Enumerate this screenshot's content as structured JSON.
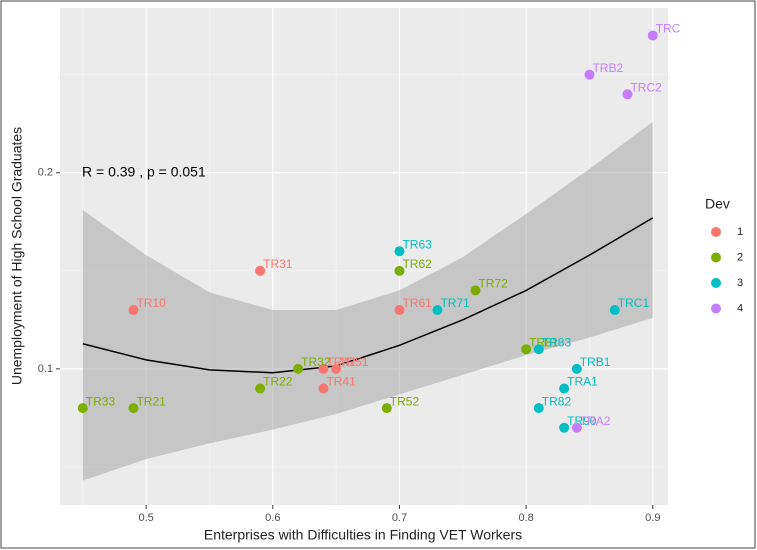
{
  "chart_data": {
    "type": "scatter",
    "x_label": "Enterprises with Difficulties in Finding VET Workers",
    "y_label": "Unemployment of High School Graduates",
    "annotation": "R = 0.39 , p = 0.051",
    "legend_title": "Dev",
    "legend_position": "right",
    "xlim": [
      0.432,
      0.912
    ],
    "ylim": [
      0.0306,
      0.284
    ],
    "xticks": [
      0.5,
      0.6,
      0.7,
      0.8,
      0.9
    ],
    "yticks": [
      0.1,
      0.2
    ],
    "xminor": [
      0.45,
      0.55,
      0.65,
      0.75,
      0.85
    ],
    "yminor": [
      0.05,
      0.15,
      0.25
    ],
    "grid": true,
    "series": [
      {
        "name": "1",
        "color": "#F8766D",
        "labels": [
          "TR10",
          "TR31",
          "TR41",
          "TR42",
          "TR51",
          "TR61"
        ],
        "x": [
          0.49,
          0.59,
          0.64,
          0.64,
          0.65,
          0.7
        ],
        "values": [
          0.13,
          0.15,
          0.09,
          0.1,
          0.1,
          0.13
        ]
      },
      {
        "name": "2",
        "color": "#7CAE00",
        "labels": [
          "TR33",
          "TR21",
          "TR22",
          "TR32",
          "TR52",
          "TR62",
          "TR72",
          "TR81"
        ],
        "x": [
          0.45,
          0.49,
          0.59,
          0.62,
          0.69,
          0.7,
          0.76,
          0.8
        ],
        "values": [
          0.08,
          0.08,
          0.09,
          0.1,
          0.08,
          0.15,
          0.14,
          0.11
        ]
      },
      {
        "name": "3",
        "color": "#00BFC4",
        "labels": [
          "TR63",
          "TR71",
          "TR83",
          "TRB1",
          "TRA1",
          "TR82",
          "TR90",
          "TRC1"
        ],
        "x": [
          0.7,
          0.73,
          0.81,
          0.84,
          0.83,
          0.81,
          0.83,
          0.87
        ],
        "values": [
          0.16,
          0.13,
          0.11,
          0.1,
          0.09,
          0.08,
          0.07,
          0.13
        ]
      },
      {
        "name": "4",
        "color": "#C77CFF",
        "labels": [
          "TRA2",
          "TRB2",
          "TRC2",
          "TRC"
        ],
        "x": [
          0.84,
          0.85,
          0.88,
          0.9
        ],
        "values": [
          0.07,
          0.25,
          0.24,
          0.27
        ]
      }
    ],
    "fit": {
      "x": [
        0.45,
        0.5,
        0.55,
        0.6,
        0.65,
        0.7,
        0.75,
        0.8,
        0.85,
        0.9
      ],
      "values": [
        0.1128,
        0.1046,
        0.0995,
        0.098,
        0.1015,
        0.112,
        0.125,
        0.14,
        0.158,
        0.177
      ],
      "upper": [
        0.181,
        0.158,
        0.139,
        0.13,
        0.13,
        0.14,
        0.157,
        0.179,
        0.202,
        0.226
      ],
      "lower": [
        0.043,
        0.054,
        0.062,
        0.069,
        0.077,
        0.087,
        0.097,
        0.107,
        0.116,
        0.126
      ]
    }
  }
}
